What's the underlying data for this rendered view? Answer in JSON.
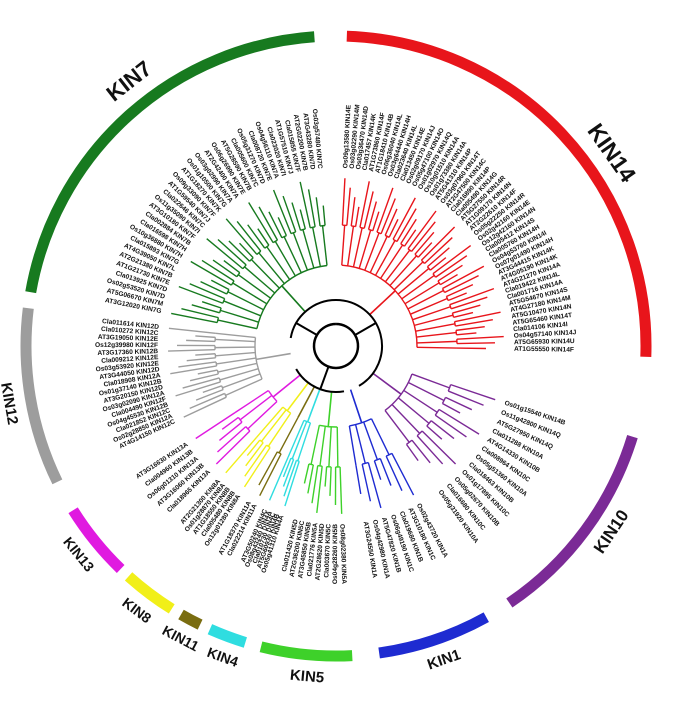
{
  "clades": [
    {
      "id": "KIN14",
      "label": "KIN14",
      "color": "#e8151b",
      "arc_deg": [
        2,
        92
      ],
      "label_deg": 55,
      "label_size": 23,
      "leaves": [
        "Os09g13580 KIN14E",
        "Os03g02290 KIN14M",
        "Os03g36470 KIN14D",
        "Cla017457 KIN14K",
        "AT1G73860 KIN14F",
        "AT1G18410 KIN14B",
        "Os06g36040 KIN14L",
        "Os03g64440 KIN14H",
        "Cla023640 KIN14L",
        "Cla013450 KIN14E",
        "Os02g09170 KIN14J",
        "Os05g47100 KIN14O",
        "Os01g02970 KIN14Q",
        "Os10g01510 KIN14A",
        "Os01g73380 KIN14A",
        "AT5G41310 KIN14P",
        "Os03g07960 KIN14T",
        "AT2G47500 KIN14C",
        "Cla016890 KIN14P",
        "Cla005490 KIN14G",
        "AT5G27550 KIN14R",
        "AT1G09170 KIN14N",
        "AT2G22610 KIN14F",
        "Os05g22250 KIN14R",
        "Os02g42160 KIN14E",
        "Os12g42160 KIN14N",
        "Cla005412 KIN14S",
        "Cla005760 KIN14H",
        "Os04g53760 KIN14I",
        "Os07g01490 KIN14H",
        "AT3G44415 KIN14K",
        "AT4G05190 KIN14K",
        "AT4G21270 KIN14A",
        "Cla019422 KIN14L",
        "Cla001716 KIN14A",
        "AT5G54670 KIN14S",
        "AT4G27180 KIN14M",
        "AT5G10470 KIN14N",
        "AT5G65460 KIN14T",
        "Cla014106 KIN14I",
        "Os04g57140 KIN14J",
        "AT5G65930 KIN14U",
        "AT1G55550 KIN14F"
      ]
    },
    {
      "id": "KIN10",
      "label": "KIN10",
      "color": "#7b2a96",
      "arc_deg": [
        107,
        146
      ],
      "label_deg": 124,
      "label_size": 17,
      "leaves": [
        "Os01g15540 KIN14B",
        "Os11g42800 KIN14Q",
        "AT5G27950 KIN14Q",
        "Cla011288 KIN10A",
        "AT4G14330 KIN10B",
        "Cla008964 KIN10C",
        "Os05g51360 KIN10A",
        "Cla018463 KIN10B",
        "Os01g17895 KIN10C",
        "Os05g02670 KIN10B",
        "Cla016680 KIN10C",
        "Os05g31920 KIN10A"
      ]
    },
    {
      "id": "KIN1",
      "label": "KIN1",
      "color": "#1e2bd1",
      "arc_deg": [
        151,
        172
      ],
      "label_deg": 161,
      "label_size": 15,
      "leaves": [
        "Os02g43720 KIN1A",
        "AT3G10180 KIN1C",
        "Cla019680 KIN1B",
        "Os06g49190 KIN1C",
        "AT5G47820 KIN1B",
        "Os04g42980 KIN1A",
        "AT3G24550 KIN1A"
      ]
    },
    {
      "id": "KIN5",
      "label": "KIN5",
      "color": "#3ed12a",
      "arc_deg": [
        177,
        194
      ],
      "label_deg": 185,
      "label_size": 15,
      "leaves": [
        "Os08g02380 KIN5A",
        "Os04g28260 KIN5B",
        "Cla003670 KIN5C",
        "AT2G28620 KIN5D",
        "Cla021776 KIN5A",
        "AT3G45850 KIN5B",
        "AT2G36200 KIN5C",
        "Cla011420 KIN5D"
      ]
    },
    {
      "id": "KIN4",
      "label": "KIN4",
      "color": "#2fdde0",
      "arc_deg": [
        197,
        204
      ],
      "label_deg": 200,
      "label_size": 14,
      "leaves": [
        "Os05g41310 KIN4A",
        "AT5G60930 KIN4B",
        "Cla010730 KIN4C",
        "Os08g43240 KIN4A",
        "AT3G50240 KIN4C"
      ]
    },
    {
      "id": "KIN11",
      "label": "KIN11",
      "color": "#7a6d10",
      "arc_deg": [
        206,
        210
      ],
      "label_deg": 208,
      "label_size": 14,
      "leaves": [
        "Cla022214 KIN11A",
        "AT1G18370 KIN11A"
      ]
    },
    {
      "id": "KIN8",
      "label": "KIN8",
      "color": "#f1ef19",
      "arc_deg": [
        212,
        222
      ],
      "label_deg": 217,
      "label_size": 14,
      "leaves": [
        "Os12g01280 KIN8A",
        "Cla005480 KIN8B",
        "AT1G18550 KIN8B",
        "Os01g28870 KIN8A",
        "AT2G21300 KIN8A"
      ]
    },
    {
      "id": "KIN13",
      "label": "KIN13",
      "color": "#e01ae0",
      "arc_deg": [
        224,
        238
      ],
      "label_deg": 231,
      "label_size": 14,
      "leaves": [
        "Cla018965 KIN13A",
        "AT3G16060 KIN13B",
        "Os06g01310 KIN13A",
        "Cla004960 KIN13B",
        "AT3G16630 KIN13A"
      ]
    },
    {
      "id": "KIN12",
      "label": "KIN12",
      "color": "#9d9d9d",
      "arc_deg": [
        244,
        277
      ],
      "label_deg": 260,
      "label_size": 15,
      "leaves": [
        "AT4G14150 KIN12C",
        "Os02g28850 KIN12A",
        "Cla021852 KIN12C",
        "Os04g45530 KIN12B",
        "Cla004490 KIN12F",
        "Os03g02090 KIN12A",
        "AT3G20150 KIN12D",
        "Os01g37140 KIN12B",
        "Cla018908 KIN12A",
        "AT3G44050 KIN12D",
        "Os03g53920 KIN12E",
        "Cla009212 KIN12E",
        "AT3G17360 KIN12B",
        "Os12g39980 KIN12F",
        "AT3G19050 KIN12E",
        "Cla010272 KIN12C",
        "Cla011614 KIN12D"
      ]
    },
    {
      "id": "KIN7",
      "label": "KIN7",
      "color": "#177a1f",
      "arc_deg": [
        280,
        356
      ],
      "label_deg": 322,
      "label_size": 22,
      "leaves": [
        "AT3G12020 KIN7G",
        "AT5G06670 KIN7M",
        "Os02g53520 KIN7D",
        "Cla013925 KIN7D",
        "AT1G21730 KIN7E",
        "AT2G21380 KIN7B",
        "AT4G39050 KIN7L",
        "Cla015893 KIN7G",
        "Os10g36880 KIN7H",
        "Cla016598 KIN7H",
        "Cla002884 KIN7B",
        "AT3G10180 KIN7F",
        "Os11g35090 KIN7I",
        "Cla022646 KIN7C",
        "AT1G59540 KIN7J",
        "Os09g33090 KIN7F",
        "AT1G18270 KIN7K",
        "Os01g10500 KIN7G",
        "Os03g02990 KIN7A",
        "AT2G42400 KIN7A",
        "Os06g26990 KIN7E",
        "AT5G28590 KIN7B",
        "Cla005600 KIN7C",
        "Os05g31270 KIN7D",
        "Cla008720 KIN7E",
        "Os04g56110 KIN7A",
        "Cla023020 KIN7I",
        "AT1G57510 KIN7J",
        "Cla015855 KIN7F",
        "AT2G02200 KIN7B",
        "AT3G43280 KIN7D",
        "Os03g57480 KIN7C"
      ]
    }
  ]
}
